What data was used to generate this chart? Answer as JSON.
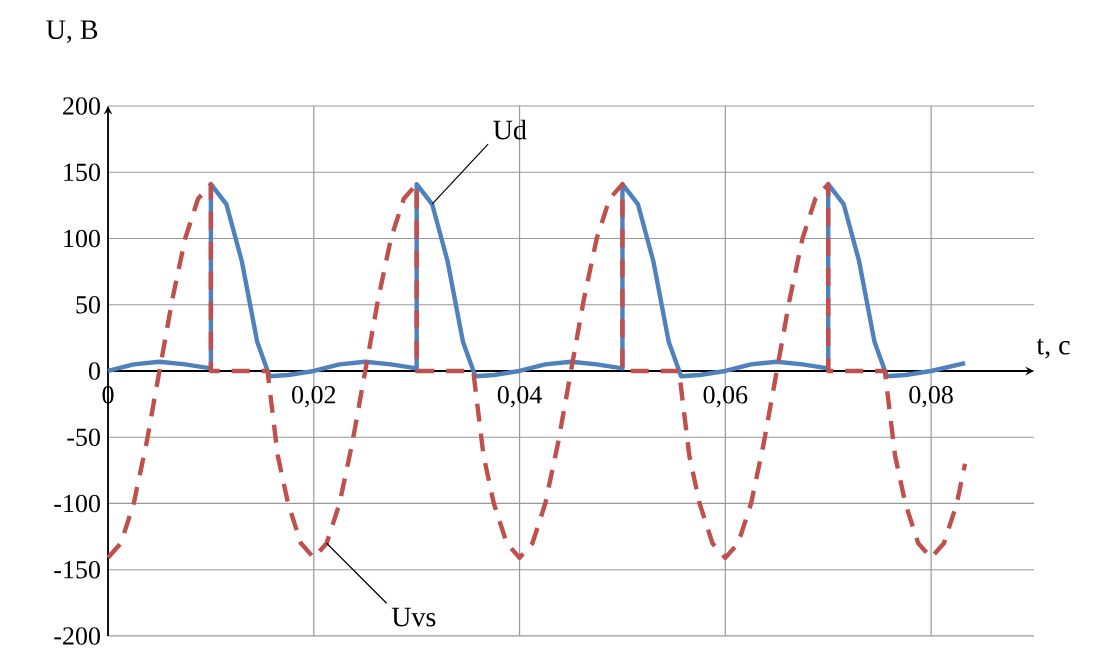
{
  "chart_data": {
    "type": "line",
    "xlabel": "t, с",
    "ylabel": "U, В",
    "xlim": [
      0,
      0.09
    ],
    "ylim": [
      -200,
      200
    ],
    "xticks": [
      0,
      {
        "value": 0.02,
        "label": "0,02"
      },
      {
        "value": 0.04,
        "label": "0,04"
      },
      {
        "value": 0.06,
        "label": "0,06"
      },
      {
        "value": 0.08,
        "label": "0,08"
      }
    ],
    "yticks": [
      -200,
      -150,
      -100,
      -50,
      0,
      50,
      100,
      150,
      200
    ],
    "grid": true,
    "series": [
      {
        "name": "Ud",
        "color": "#4f81bd",
        "line_style": "solid",
        "x": [
          0,
          0.0025,
          0.005,
          0.0075,
          0.01,
          0.01,
          0.0115,
          0.013,
          0.0145,
          0.0157,
          0.0175,
          0.02,
          0.0225,
          0.025,
          0.0275,
          0.03,
          0.03,
          0.0315,
          0.033,
          0.0345,
          0.0357,
          0.0375,
          0.04,
          0.0425,
          0.045,
          0.0475,
          0.05,
          0.05,
          0.0515,
          0.053,
          0.0545,
          0.0557,
          0.0575,
          0.06,
          0.0625,
          0.065,
          0.0675,
          0.07,
          0.07,
          0.0715,
          0.073,
          0.0745,
          0.0757,
          0.0775,
          0.08,
          0.0833
        ],
        "values": [
          0,
          5,
          7,
          5,
          2,
          141,
          126,
          83,
          22,
          -4,
          -3,
          0,
          5,
          7,
          5,
          2,
          141,
          126,
          83,
          22,
          -4,
          -3,
          0,
          5,
          7,
          5,
          2,
          141,
          126,
          83,
          22,
          -4,
          -3,
          0,
          5,
          7,
          5,
          2,
          141,
          126,
          83,
          22,
          -4,
          -3,
          0,
          6
        ]
      },
      {
        "name": "Uvs",
        "color": "#c0504d",
        "line_style": "dashed",
        "x": [
          0,
          0.00125,
          0.0025,
          0.00375,
          0.005,
          0.00625,
          0.0075,
          0.00875,
          0.01,
          0.01,
          0.0155,
          0.0165,
          0.0175,
          0.01875,
          0.02,
          0.02125,
          0.0225,
          0.02375,
          0.025,
          0.02625,
          0.0275,
          0.02875,
          0.03,
          0.03,
          0.0355,
          0.0365,
          0.0375,
          0.03875,
          0.04,
          0.04125,
          0.0425,
          0.04375,
          0.045,
          0.04625,
          0.0475,
          0.04875,
          0.05,
          0.05,
          0.0555,
          0.0565,
          0.0575,
          0.05875,
          0.06,
          0.06125,
          0.0625,
          0.06375,
          0.065,
          0.06625,
          0.0675,
          0.06875,
          0.07,
          0.07,
          0.0755,
          0.0765,
          0.0775,
          0.07875,
          0.08,
          0.08125,
          0.0825,
          0.0833
        ],
        "values": [
          -141,
          -130,
          -100,
          -54,
          0,
          54,
          100,
          130,
          141,
          0,
          0,
          -64,
          -100,
          -130,
          -141,
          -130,
          -100,
          -54,
          0,
          54,
          100,
          130,
          141,
          0,
          0,
          -64,
          -100,
          -130,
          -141,
          -130,
          -100,
          -54,
          0,
          54,
          100,
          130,
          141,
          0,
          0,
          -64,
          -100,
          -130,
          -141,
          -130,
          -100,
          -54,
          0,
          54,
          100,
          130,
          141,
          0,
          0,
          -64,
          -100,
          -130,
          -141,
          -130,
          -100,
          -70
        ]
      }
    ]
  }
}
